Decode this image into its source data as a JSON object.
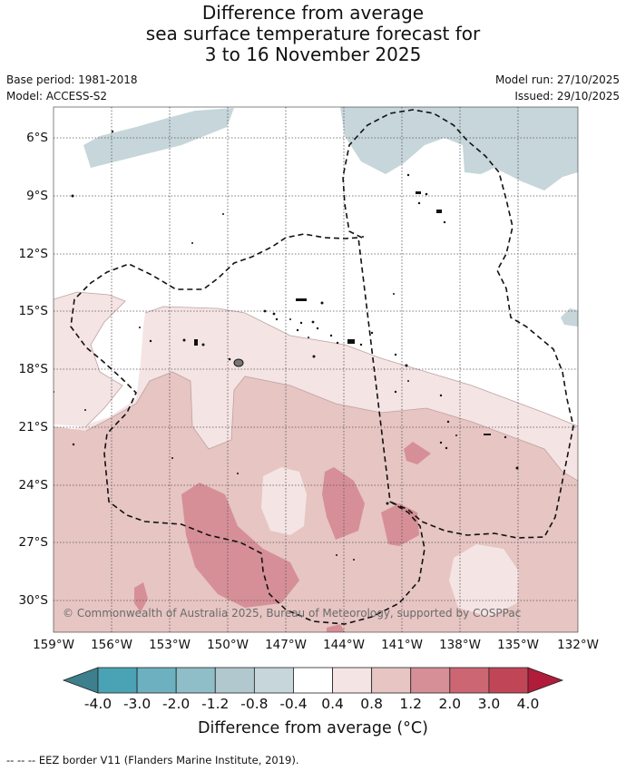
{
  "title": {
    "line1": "Difference from average",
    "line2": "sea surface temperature forecast for",
    "line3": "3 to 16 November 2025"
  },
  "meta": {
    "base_period": "Base period: 1981-2018",
    "model": "Model: ACCESS-S2",
    "model_run": "Model run: 27/10/2025",
    "issued": "Issued: 29/10/2025"
  },
  "axes": {
    "x_ticks": [
      "159°W",
      "156°W",
      "153°W",
      "150°W",
      "147°W",
      "144°W",
      "141°W",
      "138°W",
      "135°W",
      "132°W"
    ],
    "y_ticks": [
      "6°S",
      "9°S",
      "12°S",
      "15°S",
      "18°S",
      "21°S",
      "24°S",
      "27°S",
      "30°S"
    ]
  },
  "copyright": "© Commonwealth of Australia 2025, Bureau of Meteorology, supported by COSPPac",
  "colorbar": {
    "labels": [
      "-4.0",
      "-3.0",
      "-2.0",
      "-1.2",
      "-0.8",
      "-0.4",
      "0.4",
      "0.8",
      "1.2",
      "2.0",
      "3.0",
      "4.0"
    ],
    "colors": [
      "#3d7f8c",
      "#4aa3b5",
      "#6db0c0",
      "#8fbdc8",
      "#b0c8ce",
      "#c6d6da",
      "#ffffff",
      "#f4e4e3",
      "#e6c5c3",
      "#d68f97",
      "#cd6673",
      "#c04657",
      "#b01c3a"
    ],
    "title": "Difference from average (°C)"
  },
  "footnote": "--  --  -- EEZ border V11 (Flanders Marine Institute, 2019)."
}
